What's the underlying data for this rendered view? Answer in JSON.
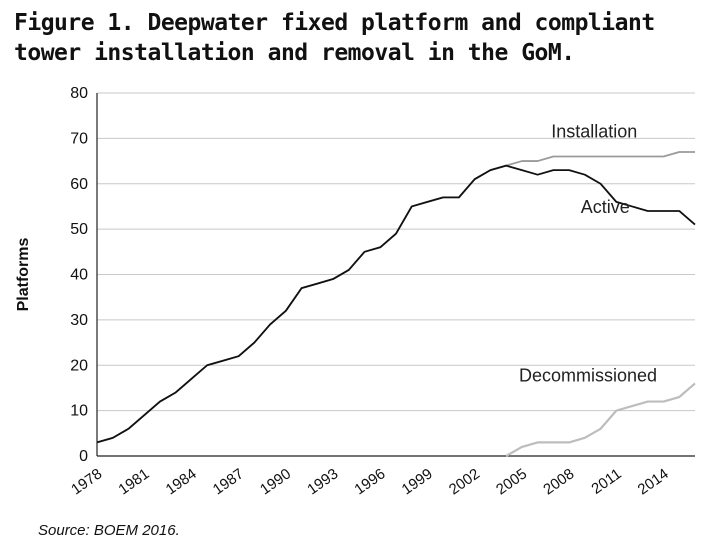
{
  "figure": {
    "title_line1": "Figure 1. Deepwater fixed platform and compliant",
    "title_line2": "tower installation and removal in the GoM.",
    "source": "Source: BOEM 2016."
  },
  "chart_data": {
    "type": "line",
    "title": "Figure 1. Deepwater fixed platform and compliant tower installation and removal in the GoM.",
    "xlabel": "",
    "ylabel": "Platforms",
    "xlim": [
      1978,
      2016
    ],
    "ylim": [
      0,
      80
    ],
    "x_ticks": [
      1978,
      1981,
      1984,
      1987,
      1990,
      1993,
      1996,
      1999,
      2002,
      2005,
      2008,
      2011,
      2014
    ],
    "y_ticks": [
      0,
      10,
      20,
      30,
      40,
      50,
      60,
      70,
      80
    ],
    "grid": true,
    "legend": "inline labels",
    "x": [
      1978,
      1979,
      1980,
      1981,
      1982,
      1983,
      1984,
      1985,
      1986,
      1987,
      1988,
      1989,
      1990,
      1991,
      1992,
      1993,
      1994,
      1995,
      1996,
      1997,
      1998,
      1999,
      2000,
      2001,
      2002,
      2003,
      2004,
      2005,
      2006,
      2007,
      2008,
      2009,
      2010,
      2011,
      2012,
      2013,
      2014,
      2015,
      2016
    ],
    "series": [
      {
        "name": "Installation",
        "color": "#9a9a9a",
        "values": [
          3,
          4,
          6,
          9,
          12,
          14,
          17,
          20,
          21,
          22,
          25,
          29,
          32,
          37,
          38,
          39,
          41,
          45,
          46,
          49,
          55,
          56,
          57,
          57,
          61,
          63,
          64,
          65,
          65,
          66,
          66,
          66,
          66,
          66,
          66,
          66,
          66,
          67,
          67
        ]
      },
      {
        "name": "Active",
        "color": "#111111",
        "values": [
          3,
          4,
          6,
          9,
          12,
          14,
          17,
          20,
          21,
          22,
          25,
          29,
          32,
          37,
          38,
          39,
          41,
          45,
          46,
          49,
          55,
          56,
          57,
          57,
          61,
          63,
          64,
          63,
          62,
          63,
          63,
          62,
          60,
          56,
          55,
          54,
          54,
          54,
          51
        ]
      },
      {
        "name": "Decommissioned",
        "color": "#bdbdbd",
        "values": [
          null,
          null,
          null,
          null,
          null,
          null,
          null,
          null,
          null,
          null,
          null,
          null,
          null,
          null,
          null,
          null,
          null,
          null,
          null,
          null,
          null,
          null,
          null,
          null,
          null,
          null,
          0,
          2,
          3,
          3,
          3,
          4,
          6,
          10,
          11,
          12,
          12,
          13,
          16
        ]
      }
    ]
  }
}
